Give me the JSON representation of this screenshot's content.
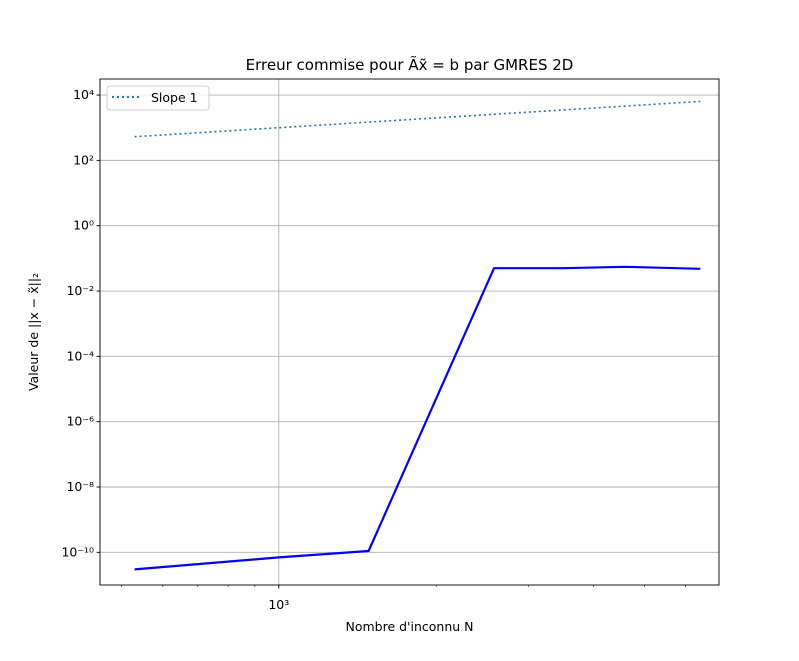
{
  "chart_data": {
    "type": "line",
    "title": "Erreur commise pour Ãx̃ = b par GMRES 2D",
    "xlabel": "Nombre d'inconnu N",
    "ylabel": "Valeur de ||x − x̃||₂",
    "xscale": "log",
    "yscale": "log",
    "xlim": [
      455,
      6950
    ],
    "ylim": [
      1e-11,
      31000.0
    ],
    "x_major_ticks": [
      {
        "value": 1000,
        "label": "10³"
      }
    ],
    "y_major_ticks": [
      {
        "value": 1e-10,
        "label": "10⁻¹⁰"
      },
      {
        "value": 1e-08,
        "label": "10⁻⁸"
      },
      {
        "value": 1e-06,
        "label": "10⁻⁶"
      },
      {
        "value": 0.0001,
        "label": "10⁻⁴"
      },
      {
        "value": 0.01,
        "label": "10⁻²"
      },
      {
        "value": 1,
        "label": "10⁰"
      },
      {
        "value": 100,
        "label": "10²"
      },
      {
        "value": 10000,
        "label": "10⁴"
      }
    ],
    "x_minor_ticks": [
      500,
      600,
      700,
      800,
      900,
      2000,
      3000,
      4000,
      5000,
      6000
    ],
    "grid": true,
    "legend": {
      "position": "top-left"
    },
    "series": [
      {
        "name": "Slope 1",
        "style": "dotted",
        "color": "#1f77b4",
        "x": [
          530,
          1000,
          6400
        ],
        "y": [
          530,
          1000,
          6400
        ]
      },
      {
        "name": "",
        "style": "solid",
        "color": "#0000ff",
        "x": [
          530,
          1000,
          1485,
          2580,
          3500,
          4600,
          6400
        ],
        "y": [
          3e-11,
          7e-11,
          1.1e-10,
          0.05,
          0.05,
          0.055,
          0.048
        ]
      }
    ]
  }
}
